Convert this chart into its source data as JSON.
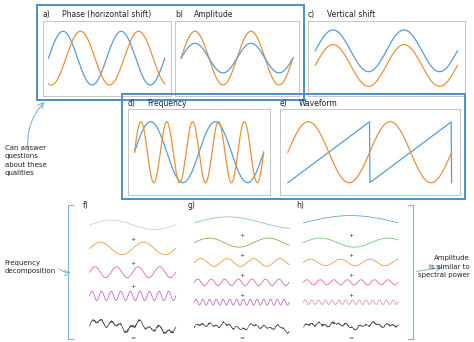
{
  "bg_color": "#ffffff",
  "blue_border": "#4a90c4",
  "orange": "#e8923a",
  "blue_wave": "#5b9bd5",
  "green": "#70ad47",
  "pink": "#e06080",
  "magenta": "#c060c0",
  "light_blue": "#7fb3d3",
  "tan": "#d4c8b0",
  "teal": "#7fc0c8",
  "light_green": "#70c070",
  "light_pink": "#e090a0",
  "text_can_answer": "Can answer\nquestions\nabout these\nqualities",
  "text_freq_decomp": "Frequency\ndecomposition",
  "text_amplitude": "Amplitude\nis similar to\nspectral power"
}
